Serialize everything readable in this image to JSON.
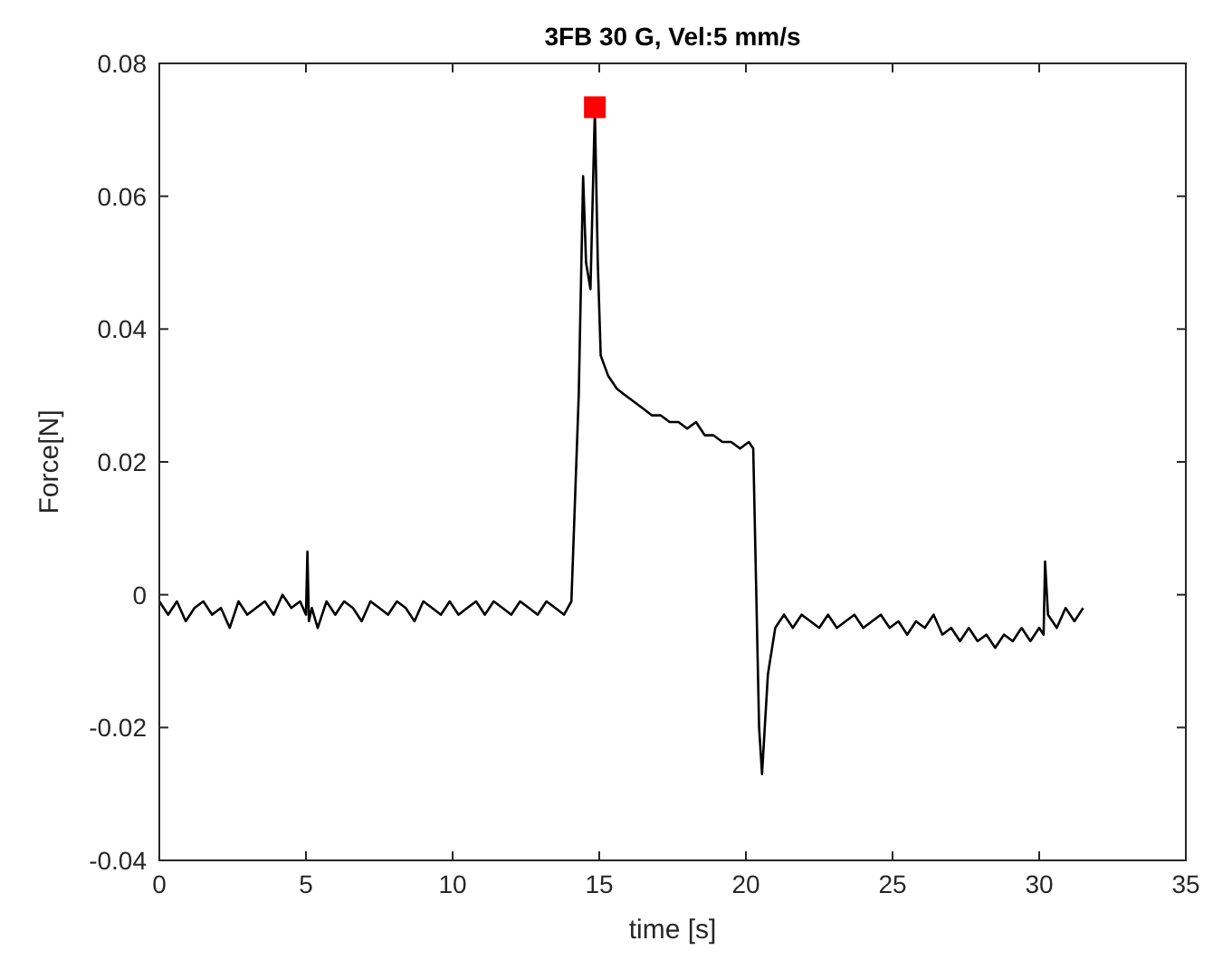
{
  "chart_data": {
    "type": "line",
    "title": "3FB 30 G, Vel:5 mm/s",
    "xlabel": "time [s]",
    "ylabel": "Force[N]",
    "xlim": [
      0,
      35
    ],
    "ylim": [
      -0.04,
      0.08
    ],
    "xticks": [
      0,
      5,
      10,
      15,
      20,
      25,
      30,
      35
    ],
    "yticks": [
      0,
      0.02,
      0.04,
      0.06,
      0.08,
      -0.02,
      -0.04
    ],
    "grid": false,
    "series": [
      {
        "color": "#000000",
        "x": [
          0,
          0.3,
          0.6,
          0.9,
          1.2,
          1.5,
          1.8,
          2.1,
          2.4,
          2.7,
          3,
          3.3,
          3.6,
          3.9,
          4.2,
          4.5,
          4.8,
          5.0,
          5.05,
          5.1,
          5.2,
          5.4,
          5.7,
          6,
          6.3,
          6.6,
          6.9,
          7.2,
          7.5,
          7.8,
          8.1,
          8.4,
          8.7,
          9,
          9.3,
          9.6,
          9.9,
          10.2,
          10.5,
          10.8,
          11.1,
          11.4,
          11.7,
          12,
          12.3,
          12.6,
          12.9,
          13.2,
          13.5,
          13.8,
          14.05,
          14.3,
          14.45,
          14.55,
          14.7,
          14.85,
          14.95,
          15.05,
          15.3,
          15.6,
          15.9,
          16.2,
          16.5,
          16.8,
          17.1,
          17.4,
          17.7,
          18,
          18.3,
          18.6,
          18.9,
          19.2,
          19.5,
          19.8,
          20.1,
          20.25,
          20.45,
          20.55,
          20.75,
          21,
          21.3,
          21.6,
          21.9,
          22.2,
          22.5,
          22.8,
          23.1,
          23.4,
          23.7,
          24,
          24.3,
          24.6,
          24.9,
          25.2,
          25.5,
          25.8,
          26.1,
          26.4,
          26.7,
          27,
          27.3,
          27.6,
          27.9,
          28.2,
          28.5,
          28.8,
          29.1,
          29.4,
          29.7,
          30,
          30.15,
          30.2,
          30.3,
          30.6,
          30.9,
          31.2,
          31.5
        ],
        "values": [
          -0.001,
          -0.003,
          -0.001,
          -0.004,
          -0.002,
          -0.001,
          -0.003,
          -0.002,
          -0.005,
          -0.001,
          -0.003,
          -0.002,
          -0.001,
          -0.003,
          0,
          -0.002,
          -0.001,
          -0.003,
          0.0065,
          -0.004,
          -0.002,
          -0.005,
          -0.001,
          -0.003,
          -0.001,
          -0.002,
          -0.004,
          -0.001,
          -0.002,
          -0.003,
          -0.001,
          -0.002,
          -0.004,
          -0.001,
          -0.002,
          -0.003,
          -0.001,
          -0.003,
          -0.002,
          -0.001,
          -0.003,
          -0.001,
          -0.002,
          -0.003,
          -0.001,
          -0.002,
          -0.003,
          -0.001,
          -0.002,
          -0.003,
          -0.001,
          0.03,
          0.063,
          0.05,
          0.046,
          0.073,
          0.05,
          0.036,
          0.033,
          0.031,
          0.03,
          0.029,
          0.028,
          0.027,
          0.027,
          0.026,
          0.026,
          0.025,
          0.026,
          0.024,
          0.024,
          0.023,
          0.023,
          0.022,
          0.023,
          0.022,
          -0.02,
          -0.027,
          -0.012,
          -0.005,
          -0.003,
          -0.005,
          -0.003,
          -0.004,
          -0.005,
          -0.003,
          -0.005,
          -0.004,
          -0.003,
          -0.005,
          -0.004,
          -0.003,
          -0.005,
          -0.004,
          -0.006,
          -0.004,
          -0.005,
          -0.003,
          -0.006,
          -0.005,
          -0.007,
          -0.005,
          -0.007,
          -0.006,
          -0.008,
          -0.006,
          -0.007,
          -0.005,
          -0.007,
          -0.005,
          -0.006,
          0.005,
          -0.003,
          -0.005,
          -0.002,
          -0.004,
          -0.002
        ]
      },
      {
        "type": "scatter",
        "color": "#ff0000",
        "marker": "square",
        "x": [
          14.85
        ],
        "values": [
          0.0734
        ]
      }
    ]
  }
}
